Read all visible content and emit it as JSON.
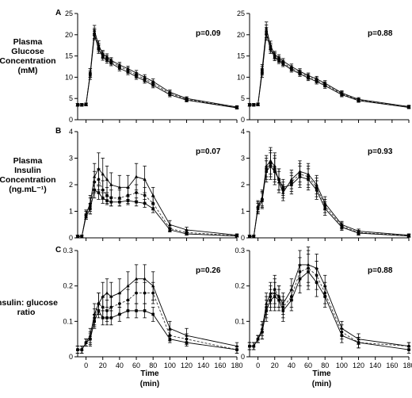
{
  "figure": {
    "row_labels": [
      [
        "Plasma",
        "Glucose",
        "Concentration",
        "(mM)"
      ],
      [
        "Plasma",
        "Insulin",
        "Concentration",
        "(ng.mL⁻¹)"
      ],
      [
        "Insulin: glucose",
        "ratio"
      ]
    ],
    "panel_letters": [
      "A",
      "B",
      "C"
    ],
    "xlabel": [
      "Time",
      "(min)"
    ]
  },
  "chart_data": [
    {
      "type": "line",
      "row": 0,
      "col": 0,
      "letter": "A",
      "pvalue": "p=0.09",
      "ylim": [
        0,
        25
      ],
      "yticks": [
        0,
        5,
        10,
        15,
        20,
        25
      ],
      "xlim": [
        -10,
        180
      ],
      "xticks": [
        0,
        20,
        40,
        60,
        80,
        100,
        120,
        140,
        160,
        180
      ],
      "x": [
        -10,
        -5,
        0,
        5,
        10,
        15,
        20,
        25,
        30,
        40,
        50,
        60,
        70,
        80,
        100,
        120,
        180
      ],
      "series": [
        {
          "values": [
            3.5,
            3.5,
            3.6,
            11,
            21,
            17.6,
            15.5,
            14.8,
            14.0,
            12.9,
            12.0,
            11.0,
            10.0,
            9.0,
            6.5,
            5.0,
            3.0
          ],
          "err": [
            0.3,
            0.3,
            0.3,
            1.0,
            1.2,
            1.0,
            0.8,
            0.7,
            0.6,
            0.6,
            0.6,
            0.6,
            0.6,
            0.6,
            0.5,
            0.4,
            0.3
          ]
        },
        {
          "values": [
            3.5,
            3.5,
            3.6,
            11,
            20.3,
            17.0,
            15.2,
            14.4,
            13.7,
            12.5,
            11.6,
            10.5,
            9.6,
            8.5,
            6.2,
            4.8,
            2.9
          ],
          "err": [
            0.3,
            0.3,
            0.3,
            1.0,
            1.2,
            1.0,
            0.8,
            0.7,
            0.6,
            0.6,
            0.6,
            0.6,
            0.6,
            0.6,
            0.5,
            0.4,
            0.3
          ]
        },
        {
          "values": [
            3.5,
            3.5,
            3.6,
            10.5,
            20.0,
            16.6,
            14.8,
            14.0,
            13.3,
            12.1,
            11.2,
            10.1,
            9.2,
            8.1,
            5.9,
            4.6,
            2.8
          ],
          "err": [
            0.3,
            0.3,
            0.3,
            1.0,
            1.2,
            1.0,
            0.8,
            0.7,
            0.6,
            0.6,
            0.6,
            0.6,
            0.6,
            0.6,
            0.5,
            0.4,
            0.3
          ]
        }
      ]
    },
    {
      "type": "line",
      "row": 0,
      "col": 1,
      "letter": "",
      "pvalue": "p=0.88",
      "ylim": [
        0,
        25
      ],
      "yticks": [
        0,
        5,
        10,
        15,
        20,
        25
      ],
      "xlim": [
        -10,
        180
      ],
      "xticks": [
        0,
        20,
        40,
        60,
        80,
        100,
        120,
        140,
        160,
        180
      ],
      "x": [
        -10,
        -5,
        0,
        5,
        10,
        15,
        20,
        25,
        30,
        40,
        50,
        60,
        70,
        80,
        100,
        120,
        180
      ],
      "series": [
        {
          "values": [
            3.5,
            3.5,
            3.6,
            12,
            21.5,
            17.5,
            15.3,
            14.6,
            13.8,
            12.5,
            11.4,
            10.4,
            9.6,
            8.6,
            6.3,
            4.8,
            3.1
          ],
          "err": [
            0.3,
            0.3,
            0.3,
            1.0,
            1.5,
            1.0,
            0.8,
            0.7,
            0.6,
            0.6,
            0.6,
            0.6,
            0.6,
            0.6,
            0.5,
            0.4,
            0.3
          ]
        },
        {
          "values": [
            3.5,
            3.5,
            3.6,
            11.5,
            20.8,
            17.0,
            15.0,
            14.2,
            13.4,
            12.1,
            11.1,
            10.1,
            9.3,
            8.3,
            6.1,
            4.6,
            3.0
          ],
          "err": [
            0.3,
            0.3,
            0.3,
            1.0,
            1.5,
            1.0,
            0.8,
            0.7,
            0.6,
            0.6,
            0.6,
            0.6,
            0.6,
            0.6,
            0.5,
            0.4,
            0.3
          ]
        },
        {
          "values": [
            3.5,
            3.5,
            3.6,
            11,
            20.2,
            16.6,
            14.7,
            13.9,
            13.1,
            11.8,
            10.8,
            9.8,
            9.0,
            8.0,
            5.9,
            4.5,
            2.9
          ],
          "err": [
            0.3,
            0.3,
            0.3,
            1.0,
            1.5,
            1.0,
            0.8,
            0.7,
            0.6,
            0.6,
            0.6,
            0.6,
            0.6,
            0.6,
            0.5,
            0.4,
            0.3
          ]
        }
      ]
    },
    {
      "type": "line",
      "row": 1,
      "col": 0,
      "letter": "B",
      "pvalue": "p=0.07",
      "ylim": [
        0,
        4
      ],
      "yticks": [
        0,
        1,
        2,
        3,
        4
      ],
      "xlim": [
        -10,
        180
      ],
      "xticks": [
        0,
        20,
        40,
        60,
        80,
        100,
        120,
        140,
        160,
        180
      ],
      "x": [
        -10,
        -5,
        0,
        5,
        10,
        15,
        20,
        25,
        30,
        40,
        50,
        60,
        70,
        80,
        100,
        120,
        180
      ],
      "series": [
        {
          "values": [
            0.05,
            0.05,
            0.9,
            1.3,
            2.3,
            2.6,
            2.4,
            2.2,
            2.0,
            1.9,
            1.9,
            2.3,
            2.2,
            1.6,
            0.5,
            0.3,
            0.1
          ],
          "err": [
            0.05,
            0.05,
            0.15,
            0.3,
            0.5,
            0.6,
            0.6,
            0.5,
            0.45,
            0.45,
            0.45,
            0.5,
            0.5,
            0.3,
            0.15,
            0.1,
            0.05
          ]
        },
        {
          "values": [
            0.05,
            0.05,
            0.85,
            1.2,
            2.1,
            2.2,
            1.8,
            1.6,
            1.5,
            1.5,
            1.6,
            1.7,
            1.6,
            1.3,
            0.35,
            0.2,
            0.08
          ],
          "err": [
            0.05,
            0.05,
            0.15,
            0.3,
            0.4,
            0.4,
            0.35,
            0.3,
            0.3,
            0.3,
            0.3,
            0.3,
            0.3,
            0.25,
            0.1,
            0.08,
            0.05
          ]
        },
        {
          "values": [
            0.05,
            0.05,
            0.8,
            1.1,
            1.8,
            1.7,
            1.5,
            1.4,
            1.35,
            1.35,
            1.4,
            1.35,
            1.3,
            1.1,
            0.3,
            0.15,
            0.07
          ],
          "err": [
            0.05,
            0.05,
            0.1,
            0.2,
            0.3,
            0.25,
            0.2,
            0.15,
            0.15,
            0.15,
            0.15,
            0.15,
            0.15,
            0.15,
            0.08,
            0.05,
            0.04
          ]
        }
      ]
    },
    {
      "type": "line",
      "row": 1,
      "col": 1,
      "letter": "",
      "pvalue": "p=0.93",
      "ylim": [
        0,
        4
      ],
      "yticks": [
        0,
        1,
        2,
        3,
        4
      ],
      "xlim": [
        -10,
        180
      ],
      "xticks": [
        0,
        20,
        40,
        60,
        80,
        100,
        120,
        140,
        160,
        180
      ],
      "x": [
        -10,
        -5,
        0,
        5,
        10,
        15,
        20,
        25,
        30,
        40,
        50,
        60,
        70,
        80,
        100,
        120,
        180
      ],
      "series": [
        {
          "values": [
            0.05,
            0.05,
            1.2,
            1.5,
            2.7,
            2.9,
            2.7,
            2.1,
            1.7,
            2.2,
            2.5,
            2.4,
            2.0,
            1.3,
            0.5,
            0.25,
            0.1
          ],
          "err": [
            0.05,
            0.05,
            0.2,
            0.3,
            0.4,
            0.5,
            0.5,
            0.4,
            0.3,
            0.35,
            0.4,
            0.4,
            0.35,
            0.25,
            0.12,
            0.08,
            0.05
          ]
        },
        {
          "values": [
            0.05,
            0.05,
            1.15,
            1.45,
            2.6,
            2.8,
            2.6,
            2.2,
            1.8,
            2.1,
            2.4,
            2.3,
            1.9,
            1.2,
            0.45,
            0.2,
            0.08
          ],
          "err": [
            0.05,
            0.05,
            0.2,
            0.3,
            0.4,
            0.5,
            0.5,
            0.4,
            0.3,
            0.35,
            0.4,
            0.4,
            0.35,
            0.25,
            0.12,
            0.08,
            0.05
          ]
        },
        {
          "values": [
            0.05,
            0.05,
            1.1,
            1.4,
            2.5,
            2.7,
            2.5,
            2.2,
            1.9,
            2.0,
            2.3,
            2.2,
            1.8,
            1.1,
            0.4,
            0.18,
            0.07
          ],
          "err": [
            0.05,
            0.05,
            0.2,
            0.3,
            0.4,
            0.5,
            0.5,
            0.4,
            0.3,
            0.35,
            0.4,
            0.4,
            0.35,
            0.25,
            0.12,
            0.08,
            0.05
          ]
        }
      ]
    },
    {
      "type": "line",
      "row": 2,
      "col": 0,
      "letter": "C",
      "pvalue": "p=0.26",
      "ylim": [
        0,
        0.3
      ],
      "yticks": [
        0.0,
        0.1,
        0.2,
        0.3
      ],
      "xlim": [
        -10,
        180
      ],
      "xticks": [
        0,
        20,
        40,
        60,
        80,
        100,
        120,
        140,
        160,
        180
      ],
      "x": [
        -10,
        -5,
        0,
        5,
        10,
        15,
        20,
        25,
        30,
        40,
        50,
        60,
        70,
        80,
        100,
        120,
        180
      ],
      "series": [
        {
          "values": [
            0.02,
            0.02,
            0.04,
            0.06,
            0.12,
            0.15,
            0.17,
            0.18,
            0.17,
            0.18,
            0.2,
            0.22,
            0.22,
            0.2,
            0.08,
            0.06,
            0.03
          ],
          "err": [
            0.01,
            0.01,
            0.01,
            0.02,
            0.03,
            0.03,
            0.04,
            0.04,
            0.04,
            0.04,
            0.04,
            0.04,
            0.04,
            0.04,
            0.02,
            0.02,
            0.01
          ]
        },
        {
          "values": [
            0.02,
            0.02,
            0.04,
            0.05,
            0.11,
            0.15,
            0.14,
            0.13,
            0.14,
            0.15,
            0.16,
            0.18,
            0.18,
            0.18,
            0.06,
            0.05,
            0.02
          ],
          "err": [
            0.01,
            0.01,
            0.01,
            0.02,
            0.025,
            0.03,
            0.03,
            0.03,
            0.03,
            0.03,
            0.03,
            0.03,
            0.03,
            0.03,
            0.015,
            0.015,
            0.01
          ]
        },
        {
          "values": [
            0.02,
            0.02,
            0.04,
            0.05,
            0.1,
            0.13,
            0.11,
            0.11,
            0.11,
            0.12,
            0.13,
            0.13,
            0.13,
            0.12,
            0.05,
            0.04,
            0.02
          ],
          "err": [
            0.01,
            0.01,
            0.01,
            0.015,
            0.02,
            0.02,
            0.02,
            0.02,
            0.02,
            0.02,
            0.02,
            0.02,
            0.02,
            0.02,
            0.01,
            0.01,
            0.01
          ]
        }
      ]
    },
    {
      "type": "line",
      "row": 2,
      "col": 1,
      "letter": "",
      "pvalue": "p=0.88",
      "ylim": [
        0,
        0.3
      ],
      "yticks": [
        0.0,
        0.1,
        0.2,
        0.3
      ],
      "xlim": [
        -10,
        180
      ],
      "xticks": [
        0,
        20,
        40,
        60,
        80,
        100,
        120,
        140,
        160,
        180
      ],
      "x": [
        -10,
        -5,
        0,
        5,
        10,
        15,
        20,
        25,
        30,
        40,
        50,
        60,
        70,
        80,
        100,
        120,
        180
      ],
      "series": [
        {
          "values": [
            0.03,
            0.03,
            0.05,
            0.08,
            0.15,
            0.18,
            0.18,
            0.17,
            0.15,
            0.19,
            0.26,
            0.26,
            0.25,
            0.2,
            0.08,
            0.05,
            0.03
          ],
          "err": [
            0.01,
            0.01,
            0.01,
            0.02,
            0.03,
            0.03,
            0.04,
            0.03,
            0.03,
            0.03,
            0.04,
            0.05,
            0.04,
            0.03,
            0.02,
            0.015,
            0.01
          ]
        },
        {
          "values": [
            0.03,
            0.03,
            0.05,
            0.07,
            0.14,
            0.17,
            0.19,
            0.17,
            0.14,
            0.17,
            0.24,
            0.25,
            0.23,
            0.18,
            0.07,
            0.04,
            0.03
          ],
          "err": [
            0.01,
            0.01,
            0.01,
            0.02,
            0.03,
            0.03,
            0.04,
            0.03,
            0.03,
            0.03,
            0.04,
            0.05,
            0.04,
            0.03,
            0.02,
            0.015,
            0.01
          ]
        },
        {
          "values": [
            0.03,
            0.03,
            0.05,
            0.07,
            0.13,
            0.16,
            0.17,
            0.16,
            0.13,
            0.16,
            0.22,
            0.24,
            0.21,
            0.17,
            0.06,
            0.04,
            0.02
          ],
          "err": [
            0.01,
            0.01,
            0.01,
            0.02,
            0.03,
            0.03,
            0.04,
            0.03,
            0.03,
            0.03,
            0.04,
            0.05,
            0.04,
            0.03,
            0.02,
            0.015,
            0.01
          ]
        }
      ]
    }
  ]
}
